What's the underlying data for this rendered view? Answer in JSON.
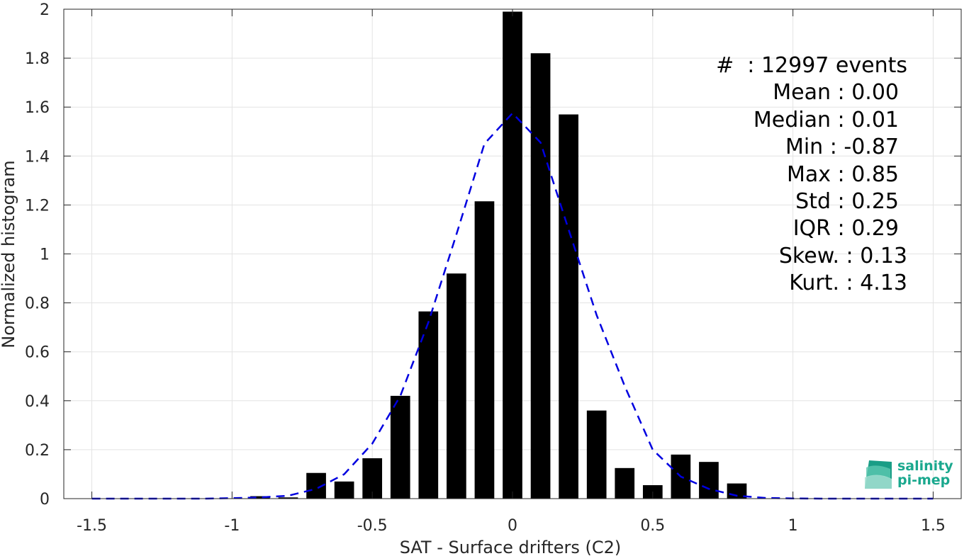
{
  "chart_data": {
    "type": "bar",
    "title": "",
    "xlabel": "SAT - Surface drifters (C2)",
    "ylabel": "Normalized histogram",
    "xlim": [
      -1.6,
      1.6
    ],
    "ylim": [
      0,
      2
    ],
    "xticks": [
      -1.5,
      -1,
      -0.5,
      0,
      0.5,
      1,
      1.5
    ],
    "xtick_labels": [
      "-1.5",
      "-1",
      "-0.5",
      "0",
      "0.5",
      "1",
      "1.5"
    ],
    "yticks": [
      0,
      0.2,
      0.4,
      0.6,
      0.8,
      1,
      1.2,
      1.4,
      1.6,
      1.8,
      2
    ],
    "ytick_labels": [
      "0",
      "0.2",
      "0.4",
      "0.6",
      "0.8",
      "1",
      "1.2",
      "1.4",
      "1.6",
      "1.8",
      "2"
    ],
    "grid": true,
    "bar_color": "#000000",
    "bar_width": 0.07,
    "bars": {
      "x": [
        -0.9,
        -0.8,
        -0.7,
        -0.6,
        -0.5,
        -0.4,
        -0.3,
        -0.2,
        -0.1,
        0.0,
        0.1,
        0.2,
        0.3,
        0.4,
        0.5,
        0.6,
        0.7,
        0.8
      ],
      "values": [
        0.01,
        0.005,
        0.105,
        0.07,
        0.165,
        0.42,
        0.765,
        0.92,
        1.215,
        1.99,
        1.82,
        1.57,
        0.36,
        0.125,
        0.055,
        0.18,
        0.15,
        0.062
      ]
    },
    "series": [
      {
        "type": "line",
        "style": "dashed",
        "color": "#0000e0",
        "x": [
          -1.5,
          -1.4,
          -1.3,
          -1.2,
          -1.1,
          -1.0,
          -0.9,
          -0.8,
          -0.7,
          -0.6,
          -0.5,
          -0.4,
          -0.3,
          -0.2,
          -0.1,
          0.0,
          0.1,
          0.2,
          0.3,
          0.4,
          0.5,
          0.6,
          0.7,
          0.8,
          0.9,
          1.0,
          1.1,
          1.2,
          1.3,
          1.4,
          1.5
        ],
        "values": [
          0,
          0,
          0,
          0,
          0,
          0.002,
          0.005,
          0.012,
          0.04,
          0.1,
          0.225,
          0.42,
          0.72,
          1.08,
          1.45,
          1.575,
          1.455,
          1.1,
          0.75,
          0.46,
          0.2,
          0.09,
          0.04,
          0.012,
          0.003,
          0.001,
          0,
          0,
          0,
          0,
          0
        ]
      }
    ]
  },
  "stats": {
    "events": "#  : 12997 events",
    "mean": "Mean : 0.00",
    "median": "Median : 0.01",
    "min": "Min : -0.87",
    "max": "Max : 0.85",
    "std": "Std : 0.25",
    "iqr": "IQR : 0.29",
    "skew": "Skew. : 0.13",
    "kurt": "Kurt. : 4.13"
  },
  "logo": {
    "line1": "salinity",
    "line2": "pi-mep",
    "color": "#1aa88e"
  }
}
